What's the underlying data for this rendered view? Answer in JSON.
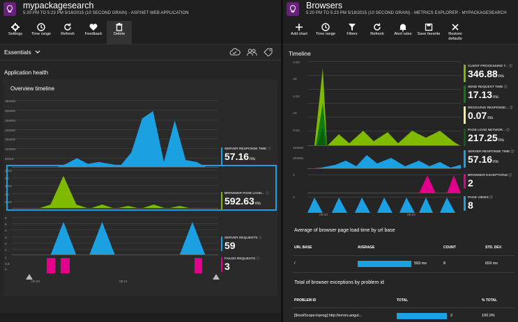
{
  "left_blade": {
    "title": "mypackagesearch",
    "subtitle": "5:20 PM TO 5:23 PM 5/18/2015 (10 SECOND GRAIN) - ASP.NET WEB APPLICATION",
    "commands": [
      {
        "label": "Settings",
        "icon": "gear-icon"
      },
      {
        "label": "Time range",
        "icon": "clock-icon"
      },
      {
        "label": "Refresh",
        "icon": "refresh-icon"
      },
      {
        "label": "Feedback",
        "icon": "heart-icon"
      },
      {
        "label": "Delete",
        "icon": "trash-icon"
      }
    ],
    "essentials_label": "Essentials",
    "section_title": "Application health",
    "panel_title": "Overview timeline",
    "charts": {
      "server_response": {
        "y_ticks": [
          "350MS",
          "300MS",
          "250MS",
          "200MS",
          "150MS",
          "100MS",
          "50MS"
        ],
        "metric_label": "SERVER RESPONSE TIME",
        "value": "57.16",
        "unit": "ms",
        "color": "#1ba1e2",
        "values": [
          0,
          0,
          0,
          0,
          0,
          20,
          50,
          20,
          30,
          20,
          10,
          80,
          260,
          300,
          30,
          250,
          40,
          30,
          0,
          0
        ]
      },
      "browser_page_load": {
        "y_ticks": [
          "2.5S",
          "2S",
          "1.5S",
          "1S",
          "0.5S"
        ],
        "metric_label": "BROWSER PAGE LOAD...",
        "value": "592.63",
        "unit": "ms",
        "color": "#7fba00",
        "values": [
          0,
          0,
          0,
          0.3,
          2.4,
          0.3,
          0,
          0.3,
          0,
          0.2,
          0,
          0.3,
          0,
          0.2,
          0,
          0,
          0
        ]
      },
      "server_requests": {
        "y_ticks": [
          "6",
          "5",
          "4",
          "3",
          "2",
          "1"
        ],
        "metric_label": "SERVER REQUESTS",
        "value": "59",
        "color": "#1ba1e2",
        "values": [
          0,
          0,
          0,
          0,
          5.6,
          0,
          0,
          5.6,
          0,
          0,
          0,
          0,
          0,
          0,
          5.6,
          0,
          0
        ]
      },
      "failed_requests": {
        "y_ticks": [
          "1",
          "0.5",
          "0"
        ],
        "metric_label": "FAILED REQUESTS",
        "value": "3",
        "color": "#e3008c"
      }
    },
    "x_ticks": [
      "05:20",
      "05:21"
    ]
  },
  "right_blade": {
    "title": "Browsers",
    "subtitle": "5:20 PM TO 5:23 PM 5/18/2015 (10 SECOND GRAIN) - METRICS EXPLORER - MYPACKAGESEARCH",
    "commands": [
      {
        "label": "Add chart",
        "icon": "plus-icon"
      },
      {
        "label": "Time range",
        "icon": "clock-icon"
      },
      {
        "label": "Filters",
        "icon": "filter-icon"
      },
      {
        "label": "Refresh",
        "icon": "refresh-icon"
      },
      {
        "label": "Alert rules",
        "icon": "bell-icon"
      },
      {
        "label": "Save favorite",
        "icon": "save-icon"
      },
      {
        "label": "Restore defaults",
        "icon": "close-icon"
      }
    ],
    "timeline_title": "Timeline",
    "charts": {
      "page_load_breakdown": {
        "y_ticks": [
          "2.5S",
          "2S",
          "1.5S",
          "1S",
          "0.5S"
        ]
      },
      "server_response": {
        "y_ticks": [
          "400MS",
          "200MS"
        ]
      },
      "exceptions": {
        "y_ticks": [
          "1"
        ]
      },
      "page_views": {
        "y_ticks": [
          "1"
        ]
      }
    },
    "x_ticks": [
      "05:20",
      "05:22"
    ],
    "metrics": [
      {
        "label": "CLIENT PROCESSING T...",
        "value": "346.88",
        "unit": "ms",
        "color": "#7fba00"
      },
      {
        "label": "SEND REQUEST TIME",
        "value": "17.13",
        "unit": "ms",
        "color": "#107c10"
      },
      {
        "label": "RECEIVING RESPONSE...",
        "value": "0.07",
        "unit": "ms",
        "color": "#f2f08a"
      },
      {
        "label": "PAGE LOAD NETWOR...",
        "value": "217.25",
        "unit": "ms",
        "color": "#0b5e0b"
      },
      {
        "label": "SERVER RESPONSE TIME",
        "value": "57.16",
        "unit": "ms",
        "color": "#1ba1e2"
      },
      {
        "label": "BROWSER EXCEPTIONS",
        "value": "2",
        "unit": "",
        "color": "#e3008c"
      },
      {
        "label": "PAGE VIEWS",
        "value": "8",
        "unit": "",
        "color": "#1ba1e2"
      }
    ],
    "table1": {
      "title": "Average of browser page load time by url base",
      "headers": [
        "URL BASE",
        "AVERAGE",
        "COUNT",
        "STD. DEV."
      ],
      "rows": [
        {
          "url": "/",
          "average": "593 ms",
          "bar_fraction": 1.0,
          "count": "8",
          "std": "659 ms"
        }
      ]
    },
    "table2": {
      "title": "Total of browser exceptions by problem id",
      "headers": [
        "PROBLEM ID",
        "TOTAL",
        "% TOTAL"
      ],
      "rows": [
        {
          "problem": "[$rootScope:inprog] http://errors.angul...",
          "total": "2",
          "bar_fraction": 1.0,
          "pct": "100.0%"
        }
      ]
    }
  }
}
